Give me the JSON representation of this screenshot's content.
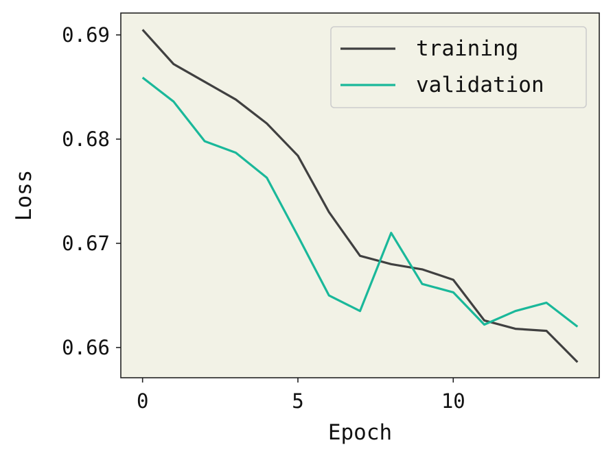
{
  "chart_data": {
    "type": "line",
    "title": "",
    "xlabel": "Epoch",
    "ylabel": "Loss",
    "xlim": [
      -0.7,
      14.7
    ],
    "ylim": [
      0.6571,
      0.6921
    ],
    "x_ticks": [
      0,
      5,
      10
    ],
    "x_tick_labels": [
      "0",
      "5",
      "10"
    ],
    "y_ticks": [
      0.66,
      0.67,
      0.68,
      0.69
    ],
    "y_tick_labels": [
      "0.66",
      "0.67",
      "0.68",
      "0.69"
    ],
    "grid": false,
    "legend_position": "top-right",
    "background_color": "#f2f2e6",
    "x": [
      0,
      1,
      2,
      3,
      4,
      5,
      6,
      7,
      8,
      9,
      10,
      11,
      12,
      13,
      14
    ],
    "series": [
      {
        "name": "training",
        "color": "#404040",
        "values": [
          0.6905,
          0.6872,
          0.6855,
          0.6838,
          0.6815,
          0.6784,
          0.673,
          0.6688,
          0.668,
          0.6675,
          0.6665,
          0.6626,
          0.6618,
          0.6616,
          0.6586
        ]
      },
      {
        "name": "validation",
        "color": "#1ab89a",
        "values": [
          0.6859,
          0.6836,
          0.6798,
          0.6787,
          0.6763,
          0.6707,
          0.665,
          0.6635,
          0.671,
          0.6661,
          0.6653,
          0.6622,
          0.6635,
          0.6643,
          0.662
        ]
      }
    ]
  }
}
